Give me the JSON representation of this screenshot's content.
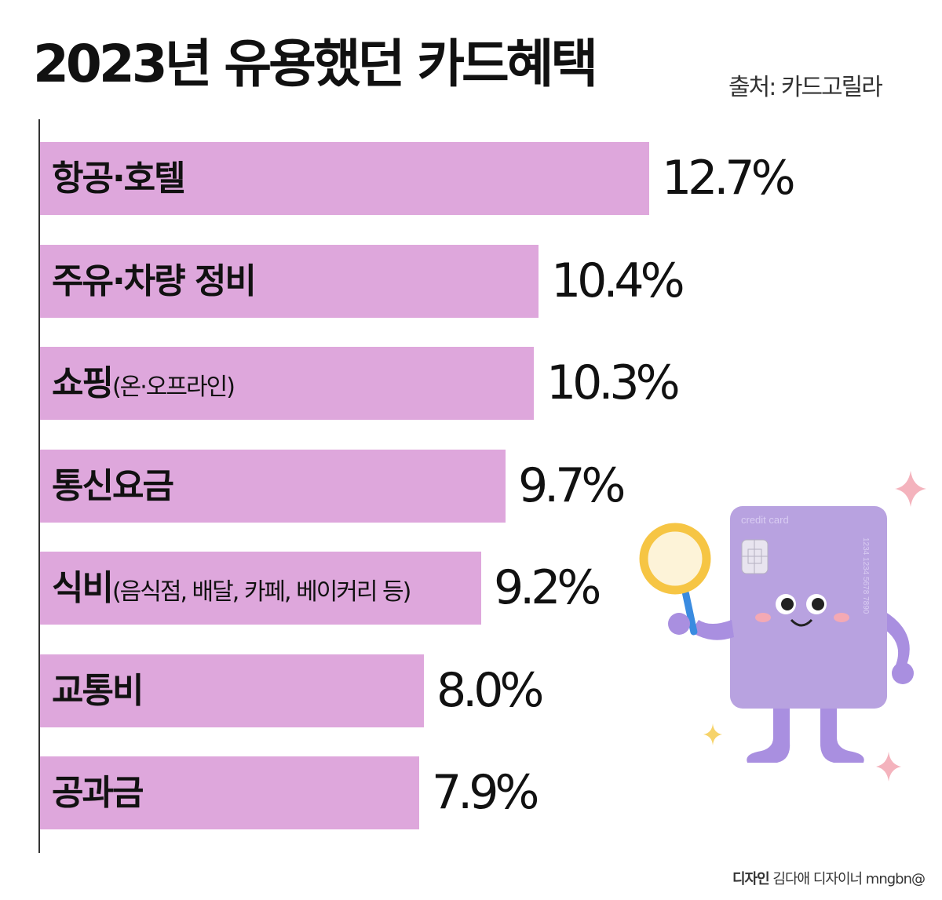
{
  "title": "2023년 유용했던 카드혜택",
  "source": "출처: 카드고릴라",
  "credit": {
    "label": "디자인",
    "name": "김다애 디자이너 mngbn@"
  },
  "card_illustration": {
    "card_label": "credit card",
    "card_number": "1234 1234 5678 7890"
  },
  "colors": {
    "bar": "#dea7dc",
    "card": "#b8a2e0",
    "sparkle": "#f4b3bd",
    "magnifier": "#f6c544"
  },
  "chart_data": {
    "type": "bar",
    "orientation": "horizontal",
    "title": "2023년 유용했던 카드혜택",
    "categories": [
      {
        "main": "항공·호텔",
        "sub": ""
      },
      {
        "main": "주유·차량 정비",
        "sub": ""
      },
      {
        "main": "쇼핑",
        "sub": "(온·오프라인)"
      },
      {
        "main": "통신요금",
        "sub": ""
      },
      {
        "main": "식비",
        "sub": "(음식점, 배달, 카페, 베이커리 등)"
      },
      {
        "main": "교통비",
        "sub": ""
      },
      {
        "main": "공과금",
        "sub": ""
      }
    ],
    "values": [
      12.7,
      10.4,
      10.3,
      9.7,
      9.2,
      8.0,
      7.9
    ],
    "labels": [
      "12.7%",
      "10.4%",
      "10.3%",
      "9.7%",
      "9.2%",
      "8.0%",
      "7.9%"
    ],
    "grid": false
  }
}
